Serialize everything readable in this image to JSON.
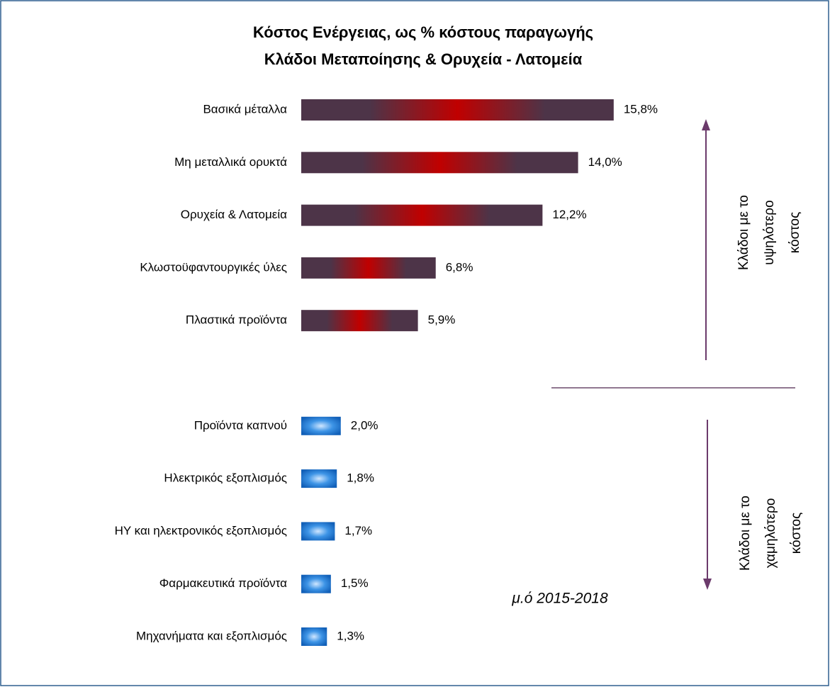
{
  "chart_data": {
    "type": "bar",
    "orientation": "horizontal",
    "title": [
      "Κόστος Ενέργειας, ως % κόστους παραγωγής",
      "Κλάδοι Μεταποίησης & Ορυχεία - Λατομεία"
    ],
    "categories": [
      "Βασικά μέταλλα",
      "Μη μεταλλικά ορυκτά",
      "Ορυχεία & Λατομεία",
      "Κλωστοϋφαντουργικές ύλες",
      "Πλαστικά προϊόντα",
      null,
      "Προϊόντα καπνού",
      "Ηλεκτρικός εξοπλισμός",
      "ΗΥ και ηλεκτρονικός εξοπλισμός",
      "Φαρμακευτικά προϊόντα",
      "Μηχανήματα και εξοπλισμός"
    ],
    "values": [
      15.8,
      14.0,
      12.2,
      6.8,
      5.9,
      null,
      2.0,
      1.8,
      1.7,
      1.5,
      1.3
    ],
    "value_labels": [
      "15,8%",
      "14,0%",
      "12,2%",
      "6,8%",
      "5,9%",
      null,
      "2,0%",
      "1,8%",
      "1,7%",
      "1,5%",
      "1,3%"
    ],
    "colors": [
      "#c00000",
      "#c00000",
      "#c00000",
      "#c00000",
      "#c00000",
      null,
      "#1f7fd6",
      "#1f7fd6",
      "#1f7fd6",
      "#1f7fd6",
      "#1f7fd6"
    ],
    "annotations": [
      [
        "Κλάδοι με το",
        "υψηλότερο",
        "κόστος"
      ],
      [
        "Κλάδοι με το",
        "χαμηλότερο",
        "κόστος"
      ],
      "μ.ό 2015-2018"
    ]
  }
}
